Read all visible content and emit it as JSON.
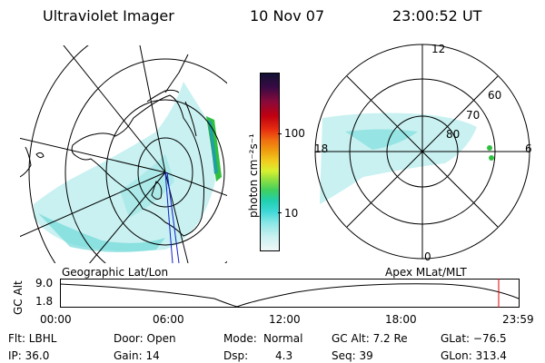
{
  "header": {
    "title": "Ultraviolet Imager",
    "date": "10 Nov 07",
    "time": "23:00:52 UT"
  },
  "left_panel": {
    "caption": "Geographic Lat/Lon"
  },
  "colorbar": {
    "label": "photon cm⁻²s⁻¹",
    "tick_labels": [
      "100",
      "10"
    ],
    "colors": [
      "#111133",
      "#3a0a44",
      "#8a0a3a",
      "#c00010",
      "#e83010",
      "#f07010",
      "#f0a010",
      "#f0d020",
      "#d8f030",
      "#90e040",
      "#40d060",
      "#20d0b0",
      "#40d8d8",
      "#90e8e8",
      "#c8f0f0",
      "#f0f8f8"
    ]
  },
  "right_panel": {
    "caption": "Apex MLat/MLT",
    "mlt_labels": [
      "12",
      "18",
      "6",
      "0"
    ],
    "lat_labels": [
      "60",
      "70",
      "80"
    ]
  },
  "altitude_plot": {
    "ylabel": "GC Alt",
    "y_ticks": [
      "9.0",
      "1.8"
    ],
    "x_ticks": [
      "00:00",
      "06:00",
      "12:00",
      "18:00",
      "23:59"
    ],
    "marker_color": "#dd0000"
  },
  "info": {
    "flt": "Flt: LBHL",
    "ip": "IP: 36.0",
    "door": "Door: Open",
    "gain": "Gain: 14",
    "mode_label": "Mode:",
    "mode_value": "Normal",
    "dsp_label": "Dsp:",
    "dsp_value": "4.3",
    "gc_alt": "GC Alt: 7.2 Re",
    "seq": "Seq: 39",
    "glat": "GLat: −76.5",
    "glon": "GLon: 313.4"
  }
}
